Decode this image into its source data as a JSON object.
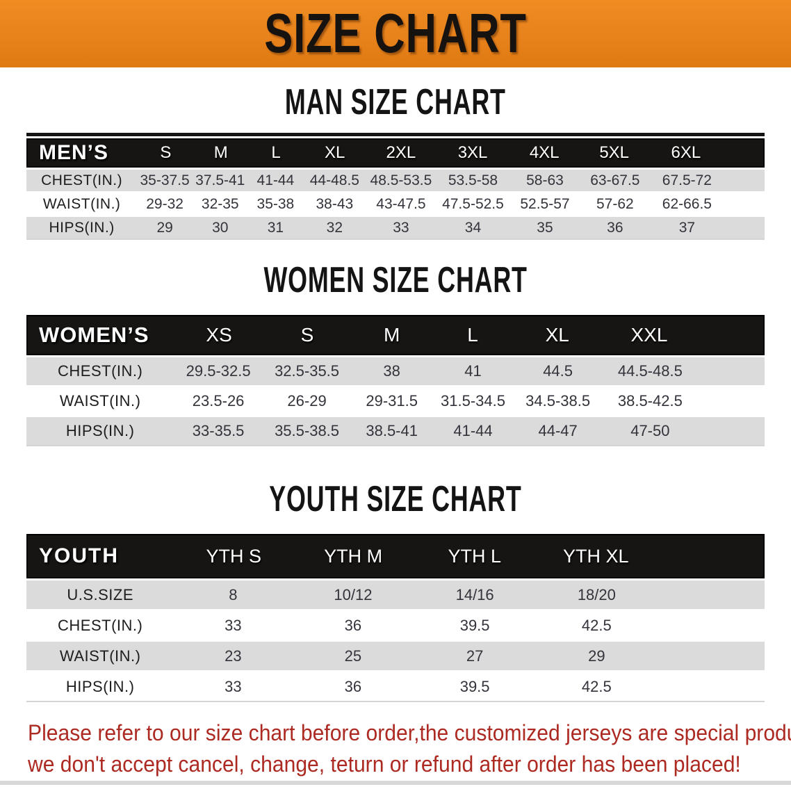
{
  "banner": {
    "title": "SIZE CHART"
  },
  "colors": {
    "banner_orange": "#E8821C",
    "band_black": "#171513",
    "row_gray": "#DBDBDB",
    "footer_red": "#AD2A22"
  },
  "sections": {
    "men": {
      "heading": "MAN SIZE CHART",
      "corner": "MEN’S",
      "sizes": [
        "S",
        "M",
        "L",
        "XL",
        "2XL",
        "3XL",
        "4XL",
        "5XL",
        "6XL"
      ],
      "rows": [
        {
          "label": "CHEST(IN.)",
          "values": [
            "35-37.5",
            "37.5-41",
            "41-44",
            "44-48.5",
            "48.5-53.5",
            "53.5-58",
            "58-63",
            "63-67.5",
            "67.5-72"
          ]
        },
        {
          "label": "WAIST(IN.)",
          "values": [
            "29-32",
            "32-35",
            "35-38",
            "38-43",
            "43-47.5",
            "47.5-52.5",
            "52.5-57",
            "57-62",
            "62-66.5"
          ]
        },
        {
          "label": "HIPS(IN.)",
          "values": [
            "29",
            "30",
            "31",
            "32",
            "33",
            "34",
            "35",
            "36",
            "37"
          ]
        }
      ]
    },
    "women": {
      "heading": "WOMEN SIZE CHART",
      "corner": "WOMEN’S",
      "sizes": [
        "XS",
        "S",
        "M",
        "L",
        "XL",
        "XXL"
      ],
      "rows": [
        {
          "label": "CHEST(IN.)",
          "values": [
            "29.5-32.5",
            "32.5-35.5",
            "38",
            "41",
            "44.5",
            "44.5-48.5"
          ]
        },
        {
          "label": "WAIST(IN.)",
          "values": [
            "23.5-26",
            "26-29",
            "29-31.5",
            "31.5-34.5",
            "34.5-38.5",
            "38.5-42.5"
          ]
        },
        {
          "label": "HIPS(IN.)",
          "values": [
            "33-35.5",
            "35.5-38.5",
            "38.5-41",
            "41-44",
            "44-47",
            "47-50"
          ]
        }
      ]
    },
    "youth": {
      "heading": "YOUTH SIZE CHART",
      "corner": "YOUTH",
      "sizes": [
        "YTH S",
        "YTH M",
        "YTH L",
        "YTH XL"
      ],
      "rows": [
        {
          "label": "U.S.SIZE",
          "values": [
            "8",
            "10/12",
            "14/16",
            "18/20"
          ]
        },
        {
          "label": "CHEST(IN.)",
          "values": [
            "33",
            "36",
            "39.5",
            "42.5"
          ]
        },
        {
          "label": "WAIST(IN.)",
          "values": [
            "23",
            "25",
            "27",
            "29"
          ]
        },
        {
          "label": "HIPS(IN.)",
          "values": [
            "33",
            "36",
            "39.5",
            "42.5"
          ]
        }
      ]
    }
  },
  "footer": {
    "line1": "Please refer to our size chart before order,the customized jerseys are special products,",
    "line2": "we don't accept cancel, change, teturn or refund after order has been placed!"
  }
}
